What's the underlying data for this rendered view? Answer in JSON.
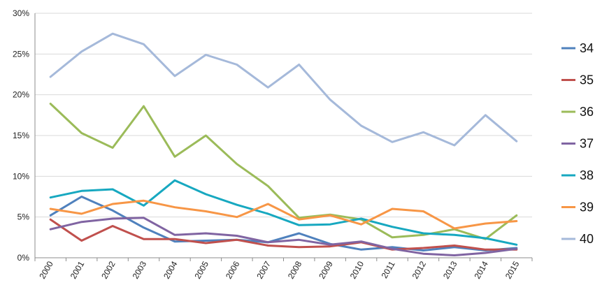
{
  "chart_data": {
    "type": "line",
    "title": "",
    "xlabel": "",
    "ylabel": "",
    "x": [
      "2000",
      "2001",
      "2002",
      "2003",
      "2004",
      "2005",
      "2006",
      "2007",
      "2008",
      "2009",
      "2010",
      "2011",
      "2012",
      "2013",
      "2014",
      "2015"
    ],
    "ylim": [
      0,
      0.3
    ],
    "yticks": [
      0,
      0.05,
      0.1,
      0.15,
      0.2,
      0.25,
      0.3
    ],
    "ytick_labels": [
      "0%",
      "5%",
      "10%",
      "15%",
      "20%",
      "25%",
      "30%"
    ],
    "grid": "horizontal",
    "legend_position": "right",
    "series": [
      {
        "name": "34",
        "color": "#4f81bd",
        "values": [
          0.052,
          0.075,
          0.058,
          0.037,
          0.02,
          0.021,
          0.022,
          0.019,
          0.03,
          0.017,
          0.01,
          0.013,
          0.009,
          0.013,
          0.009,
          0.012
        ]
      },
      {
        "name": "35",
        "color": "#c0504d",
        "values": [
          0.047,
          0.021,
          0.039,
          0.023,
          0.023,
          0.018,
          0.022,
          0.015,
          0.013,
          0.014,
          0.019,
          0.01,
          0.012,
          0.015,
          0.01,
          0.01
        ]
      },
      {
        "name": "36",
        "color": "#9bbb59",
        "values": [
          0.189,
          0.153,
          0.135,
          0.186,
          0.124,
          0.15,
          0.115,
          0.088,
          0.049,
          0.053,
          0.047,
          0.025,
          0.028,
          0.035,
          0.023,
          0.052
        ]
      },
      {
        "name": "37",
        "color": "#8064a2",
        "values": [
          0.035,
          0.044,
          0.048,
          0.049,
          0.028,
          0.03,
          0.027,
          0.019,
          0.022,
          0.016,
          0.02,
          0.011,
          0.005,
          0.003,
          0.006,
          0.011
        ]
      },
      {
        "name": "38",
        "color": "#17a8c0",
        "values": [
          0.074,
          0.082,
          0.084,
          0.064,
          0.095,
          0.078,
          0.065,
          0.054,
          0.04,
          0.041,
          0.048,
          0.038,
          0.03,
          0.028,
          0.024,
          0.016
        ]
      },
      {
        "name": "39",
        "color": "#f79646",
        "values": [
          0.06,
          0.054,
          0.066,
          0.07,
          0.062,
          0.057,
          0.05,
          0.066,
          0.047,
          0.052,
          0.041,
          0.06,
          0.057,
          0.036,
          0.042,
          0.045
        ]
      },
      {
        "name": "40",
        "color": "#a5b9da",
        "values": [
          0.222,
          0.253,
          0.275,
          0.262,
          0.223,
          0.249,
          0.237,
          0.209,
          0.237,
          0.194,
          0.162,
          0.142,
          0.154,
          0.138,
          0.175,
          0.143
        ]
      }
    ]
  }
}
